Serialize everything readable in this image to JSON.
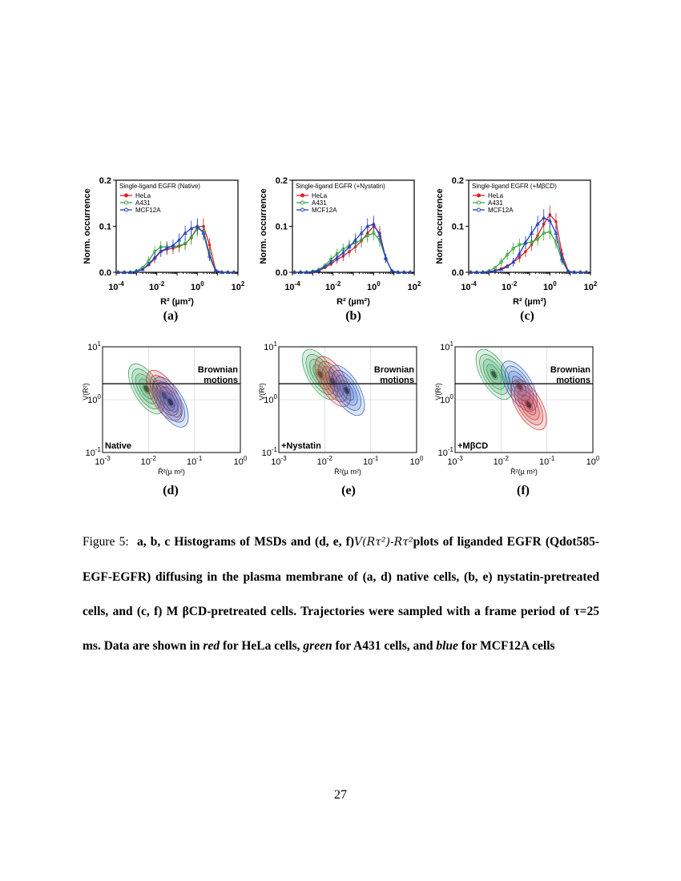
{
  "figure": {
    "histograms": [
      {
        "label": "(a)",
        "legend_title": "Single-ligand EGFR (Native)"
      },
      {
        "label": "(b)",
        "legend_title": "Single-ligand EGFR (+Nystatin)"
      },
      {
        "label": "(c)",
        "legend_title": "Single-ligand EGFR (+MβCD)"
      }
    ],
    "contours": [
      {
        "label": "(d)",
        "condition": "Native",
        "annotation": "Brownian motions"
      },
      {
        "label": "(e)",
        "condition": "+Nystatin",
        "annotation": "Brownian motions"
      },
      {
        "label": "(f)",
        "condition": "+MβCD",
        "annotation": "Brownian motions"
      }
    ]
  },
  "chart_data": [
    {
      "type": "line",
      "panel": "a",
      "title": "Single-ligand EGFR (Native)",
      "xlabel": "R² (µm²)",
      "ylabel": "Norm. occurrence",
      "xscale": "log",
      "xlim": [
        0.0001,
        100
      ],
      "ylim": [
        0,
        0.2
      ],
      "yticks": [
        "0.0",
        "0.1",
        "0.2"
      ],
      "xticks": [
        "10-4",
        "10-2",
        "100",
        "102"
      ],
      "legend": "top-left",
      "x": [
        0.000126,
        0.000251,
        0.000501,
        0.001,
        0.002,
        0.00398,
        0.00794,
        0.0158,
        0.0316,
        0.0631,
        0.126,
        0.251,
        0.501,
        1,
        2,
        3.98,
        7.94,
        15.8,
        31.6,
        63.1
      ],
      "series": [
        {
          "name": "HeLa",
          "color": "#e02020",
          "marker": "filled-circle",
          "values": [
            0,
            0,
            0,
            0.002,
            0.006,
            0.016,
            0.03,
            0.045,
            0.05,
            0.052,
            0.056,
            0.062,
            0.075,
            0.098,
            0.1,
            0.06,
            0.005,
            0,
            0,
            0
          ]
        },
        {
          "name": "A431",
          "color": "#3aa53a",
          "marker": "open-circle",
          "values": [
            0,
            0,
            0,
            0.003,
            0.01,
            0.025,
            0.045,
            0.055,
            0.055,
            0.056,
            0.058,
            0.062,
            0.075,
            0.095,
            0.09,
            0.04,
            0.003,
            0,
            0,
            0
          ]
        },
        {
          "name": "MCF12A",
          "color": "#2040c0",
          "marker": "open-triangle",
          "values": [
            0,
            0,
            0,
            0.002,
            0.006,
            0.018,
            0.032,
            0.046,
            0.052,
            0.058,
            0.07,
            0.085,
            0.095,
            0.1,
            0.085,
            0.035,
            0.003,
            0,
            0,
            0
          ]
        }
      ]
    },
    {
      "type": "line",
      "panel": "b",
      "title": "Single-ligand EGFR (+Nystatin)",
      "xlabel": "R² (µm²)",
      "ylabel": "Norm. occurrence",
      "xscale": "log",
      "xlim": [
        0.0001,
        100
      ],
      "ylim": [
        0,
        0.2
      ],
      "yticks": [
        "0.0",
        "0.1",
        "0.2"
      ],
      "xticks": [
        "10-4",
        "10-2",
        "100",
        "102"
      ],
      "legend": "top-left",
      "x": [
        0.000126,
        0.000251,
        0.000501,
        0.001,
        0.002,
        0.00398,
        0.00794,
        0.0158,
        0.0316,
        0.0631,
        0.126,
        0.251,
        0.501,
        1,
        2,
        3.98,
        7.94,
        15.8,
        31.6,
        63.1
      ],
      "series": [
        {
          "name": "HeLa",
          "color": "#e02020",
          "marker": "filled-circle",
          "values": [
            0,
            0,
            0,
            0.001,
            0.004,
            0.01,
            0.018,
            0.028,
            0.035,
            0.045,
            0.055,
            0.068,
            0.085,
            0.1,
            0.085,
            0.03,
            0.003,
            0,
            0,
            0
          ]
        },
        {
          "name": "A431",
          "color": "#3aa53a",
          "marker": "open-circle",
          "values": [
            0,
            0,
            0,
            0.002,
            0.006,
            0.015,
            0.028,
            0.04,
            0.05,
            0.058,
            0.064,
            0.07,
            0.08,
            0.085,
            0.07,
            0.03,
            0.003,
            0,
            0,
            0
          ]
        },
        {
          "name": "MCF12A",
          "color": "#2040c0",
          "marker": "open-triangle",
          "values": [
            0,
            0,
            0,
            0.001,
            0.004,
            0.012,
            0.022,
            0.032,
            0.042,
            0.055,
            0.07,
            0.085,
            0.1,
            0.105,
            0.08,
            0.03,
            0.003,
            0,
            0,
            0
          ]
        }
      ]
    },
    {
      "type": "line",
      "panel": "c",
      "title": "Single-ligand EGFR (+MβCD)",
      "xlabel": "R² (µm²)",
      "ylabel": "Norm. occurrence",
      "xscale": "log",
      "xlim": [
        0.0001,
        100
      ],
      "ylim": [
        0,
        0.2
      ],
      "yticks": [
        "0.0",
        "0.1",
        "0.2"
      ],
      "xticks": [
        "10-4",
        "10-2",
        "100",
        "102"
      ],
      "legend": "top-left",
      "x": [
        0.000126,
        0.000251,
        0.000501,
        0.001,
        0.002,
        0.00398,
        0.00794,
        0.0158,
        0.0316,
        0.0631,
        0.126,
        0.251,
        0.501,
        1,
        2,
        3.98,
        7.94,
        15.8,
        31.6,
        63.1
      ],
      "series": [
        {
          "name": "HeLa",
          "color": "#e02020",
          "marker": "filled-circle",
          "values": [
            0,
            0,
            0,
            0.001,
            0.004,
            0.008,
            0.014,
            0.022,
            0.032,
            0.045,
            0.06,
            0.08,
            0.105,
            0.125,
            0.11,
            0.04,
            0.003,
            0,
            0,
            0
          ]
        },
        {
          "name": "A431",
          "color": "#3aa53a",
          "marker": "open-circle",
          "values": [
            0,
            0,
            0,
            0.003,
            0.01,
            0.022,
            0.038,
            0.052,
            0.06,
            0.063,
            0.066,
            0.072,
            0.085,
            0.088,
            0.065,
            0.025,
            0.002,
            0,
            0,
            0
          ]
        },
        {
          "name": "MCF12A",
          "color": "#2040c0",
          "marker": "open-triangle",
          "values": [
            0,
            0,
            0,
            0.001,
            0.003,
            0.006,
            0.012,
            0.022,
            0.04,
            0.065,
            0.085,
            0.105,
            0.118,
            0.112,
            0.085,
            0.03,
            0.002,
            0,
            0,
            0
          ]
        }
      ]
    },
    {
      "type": "contour",
      "panel": "d",
      "xlabel": "R̄²(µ m²)",
      "ylabel": "V(R²)",
      "xscale": "log",
      "yscale": "log",
      "xlim": [
        0.001,
        1
      ],
      "ylim": [
        0.1,
        10
      ],
      "xticks": [
        "10-3",
        "10-2",
        "10-1",
        "100"
      ],
      "yticks": [
        "10-1",
        "100",
        "101"
      ],
      "grid": true,
      "reference_line_y": 2,
      "series": [
        {
          "color": "#2e9a50",
          "peak": [
            0.009,
            1.6
          ]
        },
        {
          "color": "#d03030",
          "peak": [
            0.022,
            1.2
          ]
        },
        {
          "color": "#2a5cc0",
          "peak": [
            0.03,
            0.9
          ]
        }
      ]
    },
    {
      "type": "contour",
      "panel": "e",
      "xlabel": "R̄²(µ m²)",
      "ylabel": "V(R²)",
      "xscale": "log",
      "yscale": "log",
      "xlim": [
        0.001,
        1
      ],
      "ylim": [
        0.1,
        10
      ],
      "xticks": [
        "10-3",
        "10-2",
        "10-1",
        "100"
      ],
      "yticks": [
        "10-1",
        "100",
        "101"
      ],
      "grid": true,
      "reference_line_y": 2,
      "series": [
        {
          "color": "#2e9a50",
          "peak": [
            0.008,
            3
          ]
        },
        {
          "color": "#d03030",
          "peak": [
            0.015,
            2.2
          ]
        },
        {
          "color": "#2a5cc0",
          "peak": [
            0.03,
            1.5
          ]
        }
      ]
    },
    {
      "type": "contour",
      "panel": "f",
      "xlabel": "R̄²(µ m²)",
      "ylabel": "V(R²)",
      "xscale": "log",
      "yscale": "log",
      "xlim": [
        0.001,
        1
      ],
      "ylim": [
        0.1,
        10
      ],
      "xticks": [
        "10-3",
        "10-2",
        "10-1",
        "100"
      ],
      "yticks": [
        "10-1",
        "100",
        "101"
      ],
      "grid": true,
      "reference_line_y": 2,
      "series": [
        {
          "color": "#2e9a50",
          "peak": [
            0.007,
            3
          ]
        },
        {
          "color": "#2a5cc0",
          "peak": [
            0.025,
            1.8
          ]
        },
        {
          "color": "#d03030",
          "peak": [
            0.04,
            0.8
          ]
        }
      ]
    }
  ],
  "caption": {
    "prefix": "Figure 5:",
    "text1": "a, b, c Histograms of MSDs and (d, e, f)",
    "math1": "V(Rτ²)-Rτ²",
    "text2": "plots of liganded EGFR (Qdot585-EGF-EGFR) diffusing in the plasma membrane of (a, d) native cells, (b, e) nystatin-pretreated cells, and (c, f) M βCD-pretreated cells. Trajectories were sampled with a frame period of τ=25 ms. Data are shown in",
    "red": "red",
    "text3": "for HeLa cells,",
    "green": "green",
    "text4": "for A431 cells, and",
    "blue": "blue",
    "text5": "for MCF12A cells"
  },
  "page_number": "27"
}
